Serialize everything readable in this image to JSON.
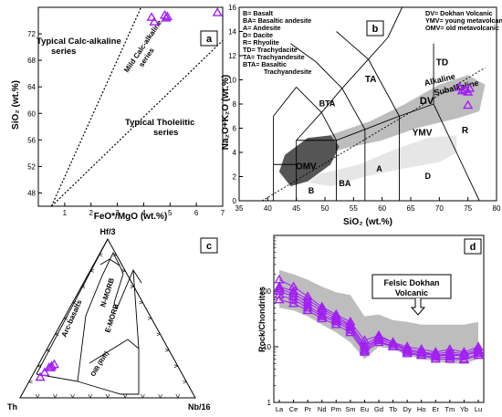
{
  "colors": {
    "purple": "#a020f0",
    "gray": "#bdbdbd",
    "dark": "#555555",
    "light": "#e6e6e6"
  },
  "chart_data": [
    {
      "panel": "a",
      "type": "scatter",
      "xlabel": "FeO*/MgO (wt.%)",
      "ylabel": "SiO₂ (wt.%)",
      "xlim": [
        0,
        7
      ],
      "ylim": [
        46,
        76
      ],
      "xticks": [
        1,
        2,
        3,
        4,
        5,
        6,
        7
      ],
      "yticks": [
        48,
        52,
        56,
        60,
        64,
        68,
        72
      ],
      "fields": [
        "Typical Calc-alkaline series",
        "Mild Calc-alkaline series",
        "Typical Tholeiitic series"
      ],
      "points": [
        [
          4.3,
          74.5
        ],
        [
          4.4,
          73.8
        ],
        [
          4.8,
          74.8
        ],
        [
          4.85,
          74.4
        ],
        [
          4.9,
          74.6
        ],
        [
          6.8,
          75.2
        ]
      ]
    },
    {
      "panel": "b",
      "type": "scatter",
      "xlabel": "SiO₂ (wt.%)",
      "ylabel": "Na₂O+K₂O (wt.%)",
      "xlim": [
        35,
        80
      ],
      "ylim": [
        0,
        16
      ],
      "xticks": [
        35,
        40,
        45,
        50,
        55,
        60,
        65,
        70,
        75,
        80
      ],
      "yticks": [
        0,
        2,
        4,
        6,
        8,
        10,
        12,
        14,
        16
      ],
      "legend_left": [
        "B= Basalt",
        "BA= Basaltic andesite",
        "A= Andesite",
        "D= Dacite",
        "R= Rhyolite",
        "TD= Trachydacite",
        "TA= Trachyandesite",
        "BTA= Basaltic",
        "Trachyandesite"
      ],
      "legend_right": [
        "DV= Dokhan Volcanic",
        "YMV= young metavolcanic",
        "OMV= old metavolcanic"
      ],
      "field_labels": [
        "TD",
        "TA",
        "BTA",
        "B",
        "BA",
        "A",
        "D",
        "R",
        "YMV"
      ],
      "omv_label": "OMV",
      "dv_label": "DV",
      "alkaline_label": "Alkaline",
      "subalkaline_label": "Subalkaline",
      "points": [
        [
          73.5,
          9.4
        ],
        [
          74.0,
          9.1
        ],
        [
          74.5,
          9.2
        ],
        [
          75.0,
          9.0
        ],
        [
          75.3,
          9.3
        ],
        [
          75.0,
          7.9
        ]
      ]
    },
    {
      "panel": "c",
      "type": "ternary",
      "apices": {
        "top": "Hf/3",
        "left": "Th",
        "right": "Nb/16"
      },
      "fields": [
        "Arc-basalts",
        "N-MORB",
        "E-MORB",
        "OIB (Rift)"
      ],
      "points": [
        [
          0.72,
          0.08
        ],
        [
          0.74,
          0.07
        ],
        [
          0.7,
          0.09
        ],
        [
          0.78,
          0.06
        ],
        [
          0.82,
          0.05
        ],
        [
          0.73,
          0.08
        ]
      ]
    },
    {
      "panel": "d",
      "type": "line",
      "ylabel": "Rock/Chondrites",
      "yscale": "log",
      "ylim": [
        1,
        1000
      ],
      "yticks": [
        "1",
        "10",
        "100"
      ],
      "categories": [
        "La",
        "Ce",
        "Pr",
        "Nd",
        "Pm",
        "Sm",
        "Eu",
        "Gd",
        "Tb",
        "Dy",
        "Ho",
        "Er",
        "Tm",
        "Yb",
        "Lu"
      ],
      "annotation": "Felsic Dokhan Volcanic",
      "series": [
        {
          "values": [
            160,
            120,
            80,
            52,
            38,
            28,
            13,
            16,
            12,
            10,
            9,
            8,
            9,
            8,
            10
          ]
        },
        {
          "values": [
            120,
            100,
            70,
            48,
            35,
            25,
            11,
            15,
            12,
            9,
            8,
            7.5,
            8,
            7.5,
            9
          ]
        },
        {
          "values": [
            110,
            90,
            62,
            44,
            32,
            24,
            10,
            14,
            11,
            9,
            8,
            7,
            7.5,
            7,
            8.5
          ]
        },
        {
          "values": [
            100,
            80,
            55,
            38,
            30,
            22,
            9,
            14,
            11,
            8.5,
            7.5,
            7,
            7,
            7,
            8
          ]
        },
        {
          "values": [
            85,
            70,
            50,
            35,
            28,
            20,
            8.5,
            13,
            10,
            8,
            7,
            6.5,
            6.5,
            6,
            7.5
          ]
        },
        {
          "values": [
            70,
            60,
            45,
            32,
            25,
            18,
            8,
            12,
            10,
            7.5,
            7,
            6,
            6,
            5.8,
            7
          ]
        }
      ],
      "band_upper": [
        240,
        200,
        160,
        120,
        95,
        85,
        35,
        38,
        30,
        28,
        25,
        25,
        25,
        25,
        28
      ],
      "band_lower": [
        50,
        45,
        35,
        25,
        18,
        12,
        6,
        10,
        9,
        7,
        6,
        5.5,
        5,
        5,
        6
      ]
    }
  ]
}
